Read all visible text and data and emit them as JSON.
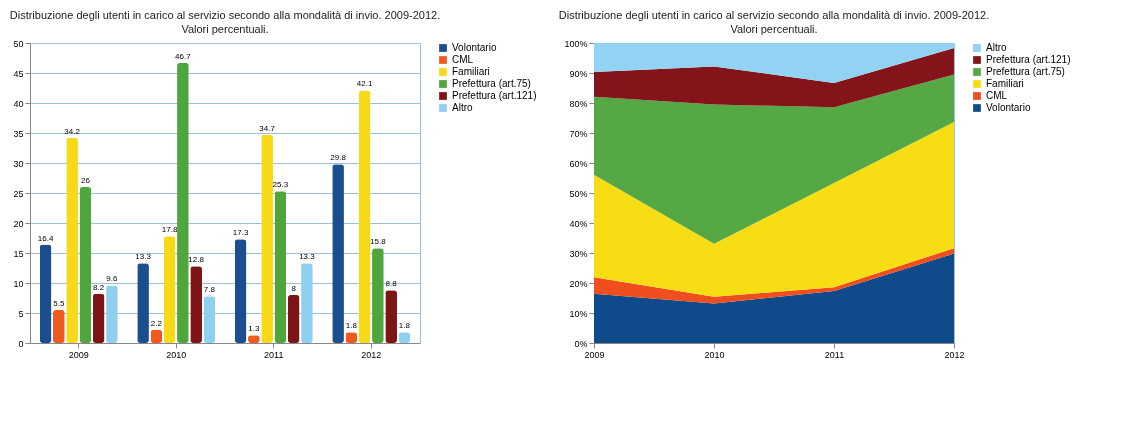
{
  "chart_data": [
    {
      "type": "bar",
      "title": "Distribuzione degli utenti in carico al servizio secondo alla mondalità di invio. 2009-2012.",
      "subtitle": "Valori percentuali.",
      "categories": [
        "2009",
        "2010",
        "2011",
        "2012"
      ],
      "series": [
        {
          "name": "Volontario",
          "color": "#1a4e8f",
          "values": [
            16.4,
            13.3,
            17.3,
            29.8
          ]
        },
        {
          "name": "CML",
          "color": "#f05a1e",
          "values": [
            5.5,
            2.2,
            1.3,
            1.8
          ]
        },
        {
          "name": "Familiari",
          "color": "#f7d917",
          "values": [
            34.2,
            17.8,
            34.7,
            42.1
          ]
        },
        {
          "name": "Prefettura (art.75)",
          "color": "#4ea63c",
          "values": [
            26,
            46.7,
            25.3,
            15.8
          ]
        },
        {
          "name": "Prefettura (art.121)",
          "color": "#7d1416",
          "values": [
            8.2,
            12.8,
            8,
            8.8
          ]
        },
        {
          "name": "Altro",
          "color": "#8fcff0",
          "values": [
            9.6,
            7.8,
            13.3,
            1.8
          ]
        }
      ],
      "ylim": [
        0,
        50
      ],
      "yticks": [
        0,
        5,
        10,
        15,
        20,
        25,
        30,
        35,
        40,
        45,
        50
      ],
      "grid": "y",
      "legend": "right",
      "data_labels": true
    },
    {
      "type": "area",
      "stacked": true,
      "title": "Distribuzione degli utenti in carico al servizio secondo alla mondalità di invio. 2009-2012.",
      "subtitle": "Valori percentuali.",
      "categories": [
        "2009",
        "2010",
        "2011",
        "2012"
      ],
      "series": [
        {
          "name": "Volontario",
          "color": "#0f4a8a",
          "values": [
            16.4,
            13.2,
            17.3,
            29.8
          ]
        },
        {
          "name": "CML",
          "color": "#f04e1e",
          "values": [
            5.5,
            2.2,
            1.3,
            1.8
          ]
        },
        {
          "name": "Familiari",
          "color": "#f7dd14",
          "values": [
            34.2,
            17.7,
            34.7,
            42.1
          ]
        },
        {
          "name": "Prefettura (art.75)",
          "color": "#55a844",
          "values": [
            26,
            46.4,
            25.3,
            15.8
          ]
        },
        {
          "name": "Prefettura (art.121)",
          "color": "#82141a",
          "values": [
            8.2,
            12.7,
            8.1,
            8.8
          ]
        },
        {
          "name": "Altro",
          "color": "#92d3f3",
          "values": [
            9.7,
            7.8,
            13.3,
            1.7
          ]
        }
      ],
      "ylim": [
        0,
        100
      ],
      "yticks": [
        {
          "value": 0,
          "label": "0%"
        },
        {
          "value": 10,
          "label": "10%"
        },
        {
          "value": 20,
          "label": "20%"
        },
        {
          "value": 30,
          "label": "30%"
        },
        {
          "value": 40,
          "label": "40%"
        },
        {
          "value": 50,
          "label": "50%"
        },
        {
          "value": 60,
          "label": "60%"
        },
        {
          "value": 70,
          "label": "70%"
        },
        {
          "value": 80,
          "label": "80%"
        },
        {
          "value": 90,
          "label": "90%"
        },
        {
          "value": 100,
          "label": "100%"
        }
      ],
      "grid": false,
      "legend": "right"
    }
  ]
}
